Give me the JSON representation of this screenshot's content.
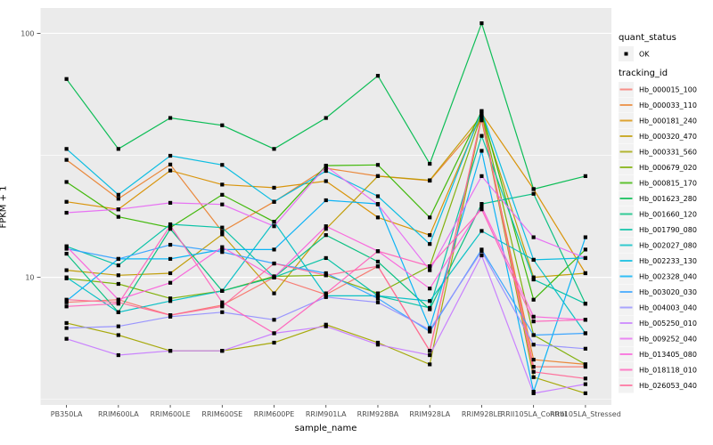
{
  "chart_data": {
    "type": "line",
    "title": "",
    "xlabel": "sample_name",
    "ylabel": "FPKM + 1",
    "x_categories": [
      "PB350LA",
      "RRIM600LA",
      "RRIM600LE",
      "RRIM600SE",
      "RRIM600PE",
      "RRIM901LA",
      "RRIM928BA",
      "RRIM928LA",
      "RRIM928LE",
      "RRII105LA_Control",
      "RRII105LA_Stressed"
    ],
    "y_scale": "log10",
    "y_ticks": [
      100,
      10
    ],
    "y_tick_labels": [
      "100",
      "10"
    ],
    "y_minor_ticks": [
      31.62,
      3.162
    ],
    "ylim": [
      3.0,
      127
    ],
    "grid": true,
    "legend_position": "right",
    "point_shape": "filled-black-square",
    "series": [
      {
        "name": "Hb_000015_100",
        "color": "#F8766D",
        "values": [
          7.9,
          8.1,
          7.0,
          7.7,
          10.0,
          8.5,
          11.1,
          5.0,
          46.0,
          4.3,
          4.3
        ]
      },
      {
        "name": "Hb_000033_110",
        "color": "#EA8331",
        "values": [
          30.3,
          21.0,
          29.0,
          15.4,
          20.4,
          28.0,
          26.0,
          24.9,
          44.0,
          4.6,
          4.4
        ]
      },
      {
        "name": "Hb_000181_240",
        "color": "#D89000",
        "values": [
          20.4,
          19.0,
          27.4,
          24.0,
          23.3,
          24.8,
          17.6,
          14.9,
          47.0,
          23.0,
          10.4
        ]
      },
      {
        "name": "Hb_000320_470",
        "color": "#C09B00",
        "values": [
          10.7,
          10.2,
          10.4,
          15.0,
          8.6,
          15.8,
          26.0,
          25.0,
          46.0,
          10.0,
          10.4
        ]
      },
      {
        "name": "Hb_000331_560",
        "color": "#A3A500",
        "values": [
          6.5,
          5.8,
          5.0,
          5.0,
          5.4,
          6.4,
          5.4,
          4.4,
          45.0,
          3.9,
          3.35
        ]
      },
      {
        "name": "Hb_000679_020",
        "color": "#7CAE00",
        "values": [
          9.9,
          9.4,
          8.2,
          8.8,
          10.1,
          10.2,
          8.6,
          11.1,
          46.5,
          5.8,
          4.4
        ]
      },
      {
        "name": "Hb_000815_170",
        "color": "#39B600",
        "values": [
          24.6,
          17.7,
          16.0,
          21.8,
          16.9,
          28.7,
          28.9,
          17.6,
          48.0,
          8.1,
          13.0
        ]
      },
      {
        "name": "Hb_001623_280",
        "color": "#00BB4E",
        "values": [
          65.0,
          33.6,
          45.0,
          42.0,
          33.6,
          45.0,
          67.0,
          29.2,
          110.0,
          23.0,
          26.0
        ]
      },
      {
        "name": "Hb_001660_120",
        "color": "#00BF7D",
        "values": [
          12.5,
          7.2,
          15.8,
          8.8,
          10.0,
          14.9,
          11.6,
          7.4,
          20.0,
          22.0,
          7.8
        ]
      },
      {
        "name": "Hb_001790_080",
        "color": "#00C1A3",
        "values": [
          13.4,
          11.2,
          16.5,
          16.0,
          10.0,
          12.0,
          8.4,
          7.5,
          38.0,
          9.8,
          7.8
        ]
      },
      {
        "name": "Hb_002027_080",
        "color": "#00BFC4",
        "values": [
          10.0,
          7.2,
          8.0,
          8.8,
          16.9,
          8.4,
          8.4,
          8.0,
          15.5,
          11.8,
          5.9
        ]
      },
      {
        "name": "Hb_002233_130",
        "color": "#00BAE0",
        "values": [
          33.6,
          21.8,
          31.5,
          28.9,
          20.4,
          27.3,
          21.5,
          13.7,
          48.0,
          11.8,
          12.0
        ]
      },
      {
        "name": "Hb_002328_040",
        "color": "#00B0F6",
        "values": [
          8.0,
          11.9,
          11.9,
          13.0,
          13.0,
          20.7,
          20.0,
          6.2,
          33.0,
          3.4,
          14.6
        ]
      },
      {
        "name": "Hb_003020_030",
        "color": "#35A2FF",
        "values": [
          13.1,
          11.9,
          13.6,
          12.7,
          11.4,
          10.4,
          8.2,
          6.0,
          13.0,
          5.8,
          5.9
        ]
      },
      {
        "name": "Hb_004003_040",
        "color": "#9590FF",
        "values": [
          6.2,
          6.3,
          6.9,
          7.2,
          6.7,
          8.3,
          7.9,
          6.1,
          12.8,
          5.3,
          5.1
        ]
      },
      {
        "name": "Hb_005250_010",
        "color": "#C77CFF",
        "values": [
          5.6,
          4.8,
          5.0,
          5.0,
          5.9,
          6.3,
          5.3,
          4.8,
          12.3,
          3.35,
          3.65
        ]
      },
      {
        "name": "Hb_009252_040",
        "color": "#E76BF3",
        "values": [
          18.4,
          19.0,
          20.2,
          19.9,
          16.2,
          28.5,
          19.9,
          10.7,
          26.0,
          14.6,
          12.0
        ]
      },
      {
        "name": "Hb_013405_080",
        "color": "#FA62DB",
        "values": [
          13.4,
          8.1,
          9.5,
          13.3,
          10.0,
          16.2,
          12.8,
          9.0,
          19.5,
          6.9,
          6.7
        ]
      },
      {
        "name": "Hb_018118_010",
        "color": "#FF62BC",
        "values": [
          7.6,
          7.8,
          16.3,
          7.9,
          5.9,
          8.6,
          12.8,
          11.1,
          19.0,
          6.6,
          6.7
        ]
      },
      {
        "name": "Hb_026053_040",
        "color": "#FF6A98",
        "values": [
          8.1,
          7.9,
          7.0,
          7.6,
          11.4,
          10.2,
          11.1,
          5.0,
          45.5,
          4.1,
          3.85
        ]
      }
    ]
  },
  "legend": {
    "quant_status": {
      "title": "quant_status",
      "items": [
        "OK"
      ]
    },
    "tracking_id": {
      "title": "tracking_id"
    }
  },
  "colors": {
    "panel_background": "#EBEBEB",
    "grid": "#FFFFFF",
    "tick_label": "#4D4D4D",
    "axis_title": "#000000",
    "legend_key_background": "#F2F2F2",
    "point": "#000000"
  }
}
